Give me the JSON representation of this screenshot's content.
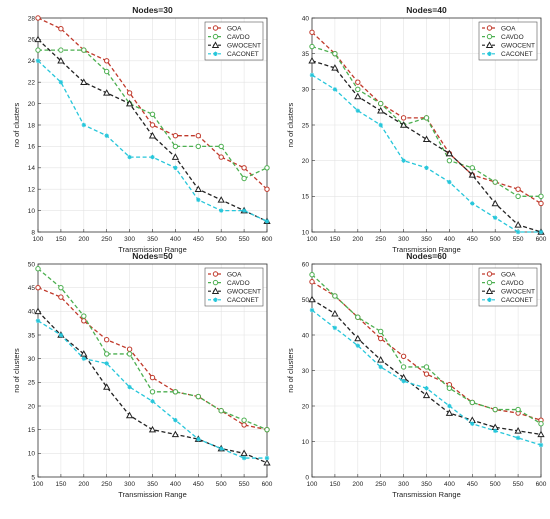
{
  "chart_data": [
    {
      "type": "line",
      "title": "Nodes=30",
      "xlabel": "Transmission Range",
      "ylabel": "no of clusters",
      "xlim": [
        100,
        600
      ],
      "ylim": [
        8,
        28
      ],
      "yticks": [
        8,
        10,
        12,
        14,
        16,
        18,
        20,
        22,
        24,
        26,
        28
      ],
      "x": [
        100,
        150,
        200,
        250,
        300,
        350,
        400,
        450,
        500,
        550,
        600
      ],
      "legend": "top-right",
      "grid": true,
      "series": [
        {
          "name": "GOA",
          "color": "#c0392b",
          "marker": "circle",
          "values": [
            28,
            27,
            25,
            24,
            21,
            18,
            17,
            17,
            15,
            14,
            12
          ]
        },
        {
          "name": "CAVDO",
          "color": "#4caf50",
          "marker": "circle",
          "values": [
            25,
            25,
            25,
            23,
            20,
            19,
            16,
            16,
            16,
            13,
            14
          ]
        },
        {
          "name": "GWOCENT",
          "color": "#222222",
          "marker": "triangle",
          "values": [
            26,
            24,
            22,
            21,
            20,
            17,
            15,
            12,
            11,
            10,
            9
          ]
        },
        {
          "name": "CACONET",
          "color": "#26c6da",
          "marker": "star",
          "values": [
            24,
            22,
            18,
            17,
            15,
            15,
            14,
            11,
            10,
            10,
            9
          ]
        }
      ]
    },
    {
      "type": "line",
      "title": "Nodes=40",
      "xlabel": "Transmission Range",
      "ylabel": "no of clusters",
      "xlim": [
        100,
        600
      ],
      "ylim": [
        10,
        40
      ],
      "yticks": [
        10,
        15,
        20,
        25,
        30,
        35,
        40
      ],
      "x": [
        100,
        150,
        200,
        250,
        300,
        350,
        400,
        450,
        500,
        550,
        600
      ],
      "legend": "top-right",
      "grid": true,
      "series": [
        {
          "name": "GOA",
          "color": "#c0392b",
          "marker": "circle",
          "values": [
            38,
            35,
            31,
            28,
            26,
            26,
            21,
            18,
            17,
            16,
            14
          ]
        },
        {
          "name": "CAVDO",
          "color": "#4caf50",
          "marker": "circle",
          "values": [
            36,
            35,
            30,
            28,
            25,
            26,
            20,
            19,
            17,
            15,
            15
          ]
        },
        {
          "name": "GWOCENT",
          "color": "#222222",
          "marker": "triangle",
          "values": [
            34,
            33,
            29,
            27,
            25,
            23,
            21,
            18,
            14,
            11,
            10
          ]
        },
        {
          "name": "CACONET",
          "color": "#26c6da",
          "marker": "star",
          "values": [
            32,
            30,
            27,
            25,
            20,
            19,
            17,
            14,
            12,
            10,
            10
          ]
        }
      ]
    },
    {
      "type": "line",
      "title": "Nodes=50",
      "xlabel": "Transmission Range",
      "ylabel": "no of clusters",
      "xlim": [
        100,
        600
      ],
      "ylim": [
        5,
        50
      ],
      "yticks": [
        5,
        10,
        15,
        20,
        25,
        30,
        35,
        40,
        45,
        50
      ],
      "x": [
        100,
        150,
        200,
        250,
        300,
        350,
        400,
        450,
        500,
        550,
        600
      ],
      "legend": "top-right",
      "grid": true,
      "series": [
        {
          "name": "GOA",
          "color": "#c0392b",
          "marker": "circle",
          "values": [
            45,
            43,
            38,
            34,
            32,
            26,
            23,
            22,
            19,
            16,
            15
          ]
        },
        {
          "name": "CAVDO",
          "color": "#4caf50",
          "marker": "circle",
          "values": [
            49,
            45,
            39,
            31,
            31,
            23,
            23,
            22,
            19,
            17,
            15
          ]
        },
        {
          "name": "GWOCENT",
          "color": "#222222",
          "marker": "triangle",
          "values": [
            40,
            35,
            31,
            24,
            18,
            15,
            14,
            13,
            11,
            10,
            8
          ]
        },
        {
          "name": "CACONET",
          "color": "#26c6da",
          "marker": "star",
          "values": [
            38,
            35,
            30,
            29,
            24,
            21,
            17,
            13,
            11,
            9,
            9
          ]
        }
      ]
    },
    {
      "type": "line",
      "title": "Nodes=60",
      "xlabel": "Transmission Range",
      "ylabel": "no of clusters",
      "xlim": [
        100,
        600
      ],
      "ylim": [
        0,
        60
      ],
      "yticks": [
        0,
        10,
        20,
        30,
        40,
        50,
        60
      ],
      "x": [
        100,
        150,
        200,
        250,
        300,
        350,
        400,
        450,
        500,
        550,
        600
      ],
      "legend": "top-right",
      "grid": true,
      "series": [
        {
          "name": "GOA",
          "color": "#c0392b",
          "marker": "circle",
          "values": [
            55,
            51,
            45,
            39,
            34,
            29,
            26,
            21,
            19,
            18,
            16
          ]
        },
        {
          "name": "CAVDO",
          "color": "#4caf50",
          "marker": "circle",
          "values": [
            57,
            51,
            45,
            41,
            31,
            31,
            25,
            21,
            19,
            19,
            15
          ]
        },
        {
          "name": "GWOCENT",
          "color": "#222222",
          "marker": "triangle",
          "values": [
            50,
            46,
            39,
            33,
            28,
            23,
            18,
            16,
            14,
            13,
            12
          ]
        },
        {
          "name": "CACONET",
          "color": "#26c6da",
          "marker": "star",
          "values": [
            47,
            42,
            37,
            31,
            27,
            25,
            20,
            15,
            13,
            11,
            9
          ]
        }
      ]
    }
  ]
}
